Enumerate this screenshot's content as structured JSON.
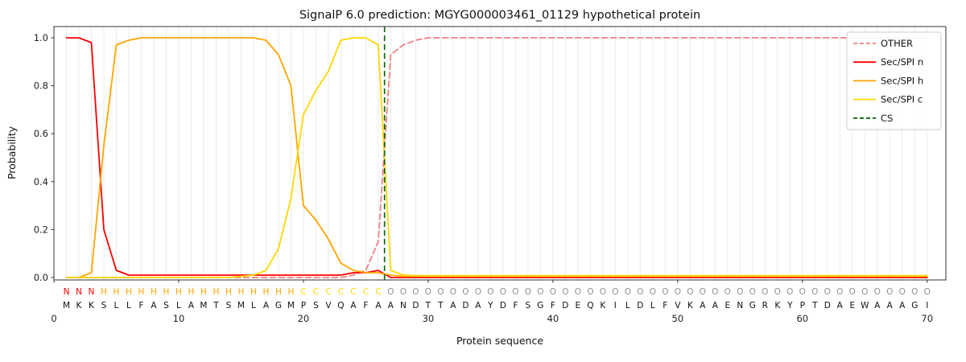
{
  "title": "SignalP 6.0 prediction: MGYG000003461_01129 hypothetical protein",
  "axes": {
    "xlabel": "Protein sequence",
    "ylabel": "Probability",
    "x_ticks": [
      0,
      10,
      20,
      30,
      40,
      50,
      60,
      70
    ],
    "y_ticks": [
      "0.0",
      "0.2",
      "0.4",
      "0.6",
      "0.8",
      "1.0"
    ]
  },
  "legend": {
    "position": "upper right",
    "items": [
      {
        "label": "OTHER",
        "color": "#f08080",
        "dashed": true
      },
      {
        "label": "Sec/SPI n",
        "color": "#ff0000",
        "dashed": false
      },
      {
        "label": "Sec/SPI h",
        "color": "#ffa500",
        "dashed": false
      },
      {
        "label": "Sec/SPI c",
        "color": "#ffd700",
        "dashed": false
      },
      {
        "label": "CS",
        "color": "#006400",
        "dashed": true
      }
    ]
  },
  "sequence": {
    "residues": "MKKSLLFASLAMTSMLAGMPSVQAFAANDTTADAYDFSGFDEQKILDLFVKAAENGRKYPTDAEWAAAGI",
    "regions": "NNNHHHHHHHHHHHHHHHHCCCCCCCOOOOOOOOOOOOOOOOOOOOOOOOOOOOOOOOOOOOOOOOOOOO",
    "region_colors": {
      "N": "#ff0000",
      "H": "#ffa500",
      "C": "#ffd700",
      "O": "#909090"
    },
    "residue_color": "#111111"
  },
  "chart_data": {
    "type": "line",
    "title": "SignalP 6.0 prediction: MGYG000003461_01129 hypothetical protein",
    "xlabel": "Protein sequence",
    "ylabel": "Probability",
    "xlim": [
      0,
      71.5
    ],
    "ylim": [
      0,
      1.05
    ],
    "grid": "vertical gridline at every residue position, no horizontal grid",
    "legend_position": "upper right",
    "x": [
      1,
      2,
      3,
      4,
      5,
      6,
      7,
      8,
      9,
      10,
      11,
      12,
      13,
      14,
      15,
      16,
      17,
      18,
      19,
      20,
      21,
      22,
      23,
      24,
      25,
      26,
      27,
      28,
      29,
      30,
      31,
      32,
      33,
      34,
      35,
      36,
      37,
      38,
      39,
      40,
      41,
      42,
      43,
      44,
      45,
      46,
      47,
      48,
      49,
      50,
      51,
      52,
      53,
      54,
      55,
      56,
      57,
      58,
      59,
      60,
      61,
      62,
      63,
      64,
      65,
      66,
      67,
      68,
      69,
      70
    ],
    "series": [
      {
        "name": "OTHER",
        "color": "#f08080",
        "style": "dashed",
        "values": [
          0,
          0,
          0,
          0,
          0,
          0,
          0,
          0,
          0,
          0,
          0,
          0,
          0,
          0,
          0,
          0,
          0,
          0,
          0,
          0,
          0,
          0,
          0,
          0.01,
          0.03,
          0.15,
          0.93,
          0.97,
          0.99,
          1,
          1,
          1,
          1,
          1,
          1,
          1,
          1,
          1,
          1,
          1,
          1,
          1,
          1,
          1,
          1,
          1,
          1,
          1,
          1,
          1,
          1,
          1,
          1,
          1,
          1,
          1,
          1,
          1,
          1,
          1,
          1,
          1,
          1,
          1,
          1,
          1,
          1,
          1,
          1,
          1
        ]
      },
      {
        "name": "Sec/SPI n",
        "color": "#ff0000",
        "style": "solid",
        "values": [
          1,
          1,
          0.98,
          0.2,
          0.03,
          0.01,
          0.01,
          0.01,
          0.01,
          0.01,
          0.01,
          0.01,
          0.01,
          0.01,
          0.01,
          0.01,
          0.01,
          0.01,
          0.01,
          0.01,
          0.01,
          0.01,
          0.01,
          0.02,
          0.02,
          0.03,
          0,
          0,
          0,
          0,
          0,
          0,
          0,
          0,
          0,
          0,
          0,
          0,
          0,
          0,
          0,
          0,
          0,
          0,
          0,
          0,
          0,
          0,
          0,
          0,
          0,
          0,
          0,
          0,
          0,
          0,
          0,
          0,
          0,
          0,
          0,
          0,
          0,
          0,
          0,
          0,
          0,
          0,
          0,
          0
        ]
      },
      {
        "name": "Sec/SPI h",
        "color": "#ffa500",
        "style": "solid",
        "values": [
          0,
          0,
          0.02,
          0.55,
          0.97,
          0.99,
          1,
          1,
          1,
          1,
          1,
          1,
          1,
          1,
          1,
          1,
          0.99,
          0.93,
          0.8,
          0.3,
          0.24,
          0.16,
          0.06,
          0.03,
          0.02,
          0.02,
          0.01,
          0.005,
          0.005,
          0.005,
          0.005,
          0.005,
          0.005,
          0.005,
          0.005,
          0.005,
          0.005,
          0.005,
          0.005,
          0.005,
          0.005,
          0.005,
          0.005,
          0.005,
          0.005,
          0.005,
          0.005,
          0.005,
          0.005,
          0.005,
          0.005,
          0.005,
          0.005,
          0.005,
          0.005,
          0.005,
          0.005,
          0.005,
          0.005,
          0.005,
          0.005,
          0.005,
          0.005,
          0.005,
          0.005,
          0.005,
          0.005,
          0.005,
          0.005,
          0.005
        ]
      },
      {
        "name": "Sec/SPI c",
        "color": "#ffd700",
        "style": "solid",
        "values": [
          0,
          0,
          0,
          0,
          0,
          0,
          0,
          0,
          0,
          0,
          0,
          0,
          0,
          0,
          0.005,
          0.01,
          0.03,
          0.12,
          0.33,
          0.68,
          0.78,
          0.86,
          0.99,
          1,
          1,
          0.97,
          0.03,
          0.01,
          0.008,
          0.008,
          0.008,
          0.008,
          0.008,
          0.008,
          0.008,
          0.008,
          0.008,
          0.008,
          0.008,
          0.008,
          0.008,
          0.008,
          0.008,
          0.008,
          0.008,
          0.008,
          0.008,
          0.008,
          0.008,
          0.008,
          0.008,
          0.008,
          0.008,
          0.008,
          0.008,
          0.008,
          0.008,
          0.008,
          0.008,
          0.008,
          0.008,
          0.008,
          0.008,
          0.008,
          0.008,
          0.008,
          0.008,
          0.008,
          0.008,
          0.008
        ]
      }
    ],
    "cs_line": {
      "name": "CS",
      "x": 26.5,
      "color": "#006400",
      "style": "dashed"
    }
  }
}
